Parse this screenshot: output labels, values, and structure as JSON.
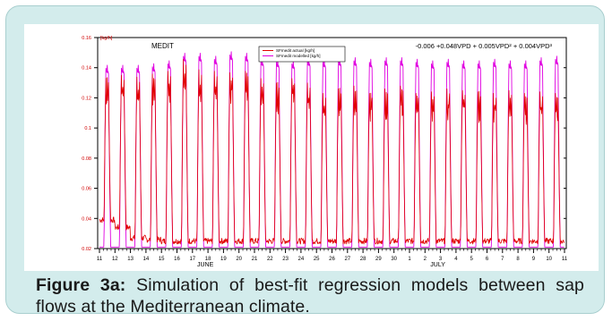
{
  "figure": {
    "label": "Figure 3a:",
    "caption": " Simulation of best-fit regression models between sap flows at the Mediterranean climate."
  },
  "chart_data": {
    "type": "line",
    "title": "MEDIT",
    "equation": "-0.006 +0.048VPD + 0.005VPD² + 0.004VPD³",
    "ylabel": "[kg/h]",
    "ylim": [
      0.02,
      0.16
    ],
    "yticks": [
      "0.02",
      "0.04",
      "0.06",
      "0.08",
      "0.1",
      "0.12",
      "0.14",
      "0.16"
    ],
    "xtick_labels": [
      "11",
      "12",
      "13",
      "14",
      "15",
      "16",
      "17",
      "18",
      "19",
      "20",
      "21",
      "22",
      "23",
      "24",
      "25",
      "26",
      "27",
      "28",
      "29",
      "30",
      "1",
      "2",
      "3",
      "4",
      "5",
      "6",
      "7",
      "8",
      "9",
      "10",
      "11"
    ],
    "month_labels": [
      {
        "label": "JUNE",
        "at_day_index": 7
      },
      {
        "label": "JULY",
        "at_day_index": 22
      }
    ],
    "grid": false,
    "legend_position": "top-center",
    "series": [
      {
        "name": "SFmedit actual [kg/h]",
        "color": "#e00000",
        "daily_peaks": [
          0.135,
          0.137,
          0.136,
          0.138,
          0.14,
          0.148,
          0.141,
          0.14,
          0.139,
          0.14,
          0.135,
          0.132,
          0.135,
          0.132,
          0.125,
          0.128,
          0.13,
          0.125,
          0.128,
          0.13,
          0.125,
          0.126,
          0.128,
          0.127,
          0.126,
          0.125,
          0.127,
          0.125,
          0.126,
          0.125
        ],
        "daily_minimums": [
          0.037,
          0.032,
          0.025,
          0.024,
          0.023,
          0.023,
          0.023,
          0.023,
          0.023,
          0.023,
          0.023,
          0.023,
          0.023,
          0.023,
          0.023,
          0.023,
          0.023,
          0.023,
          0.023,
          0.023,
          0.023,
          0.023,
          0.023,
          0.023,
          0.023,
          0.023,
          0.023,
          0.023,
          0.023,
          0.023
        ]
      },
      {
        "name": "SFmedit modelled [kg/h]",
        "color": "#e000e0",
        "daily_peaks": [
          0.142,
          0.142,
          0.142,
          0.143,
          0.145,
          0.15,
          0.15,
          0.148,
          0.151,
          0.15,
          0.147,
          0.146,
          0.145,
          0.147,
          0.146,
          0.147,
          0.147,
          0.146,
          0.147,
          0.147,
          0.146,
          0.145,
          0.146,
          0.145,
          0.145,
          0.146,
          0.145,
          0.145,
          0.147,
          0.148
        ],
        "daily_minimums": [
          0.021,
          0.021,
          0.021,
          0.021,
          0.021,
          0.021,
          0.021,
          0.021,
          0.021,
          0.021,
          0.021,
          0.021,
          0.021,
          0.021,
          0.021,
          0.021,
          0.021,
          0.021,
          0.021,
          0.021,
          0.021,
          0.021,
          0.021,
          0.021,
          0.021,
          0.021,
          0.021,
          0.021,
          0.021,
          0.021
        ]
      }
    ]
  }
}
